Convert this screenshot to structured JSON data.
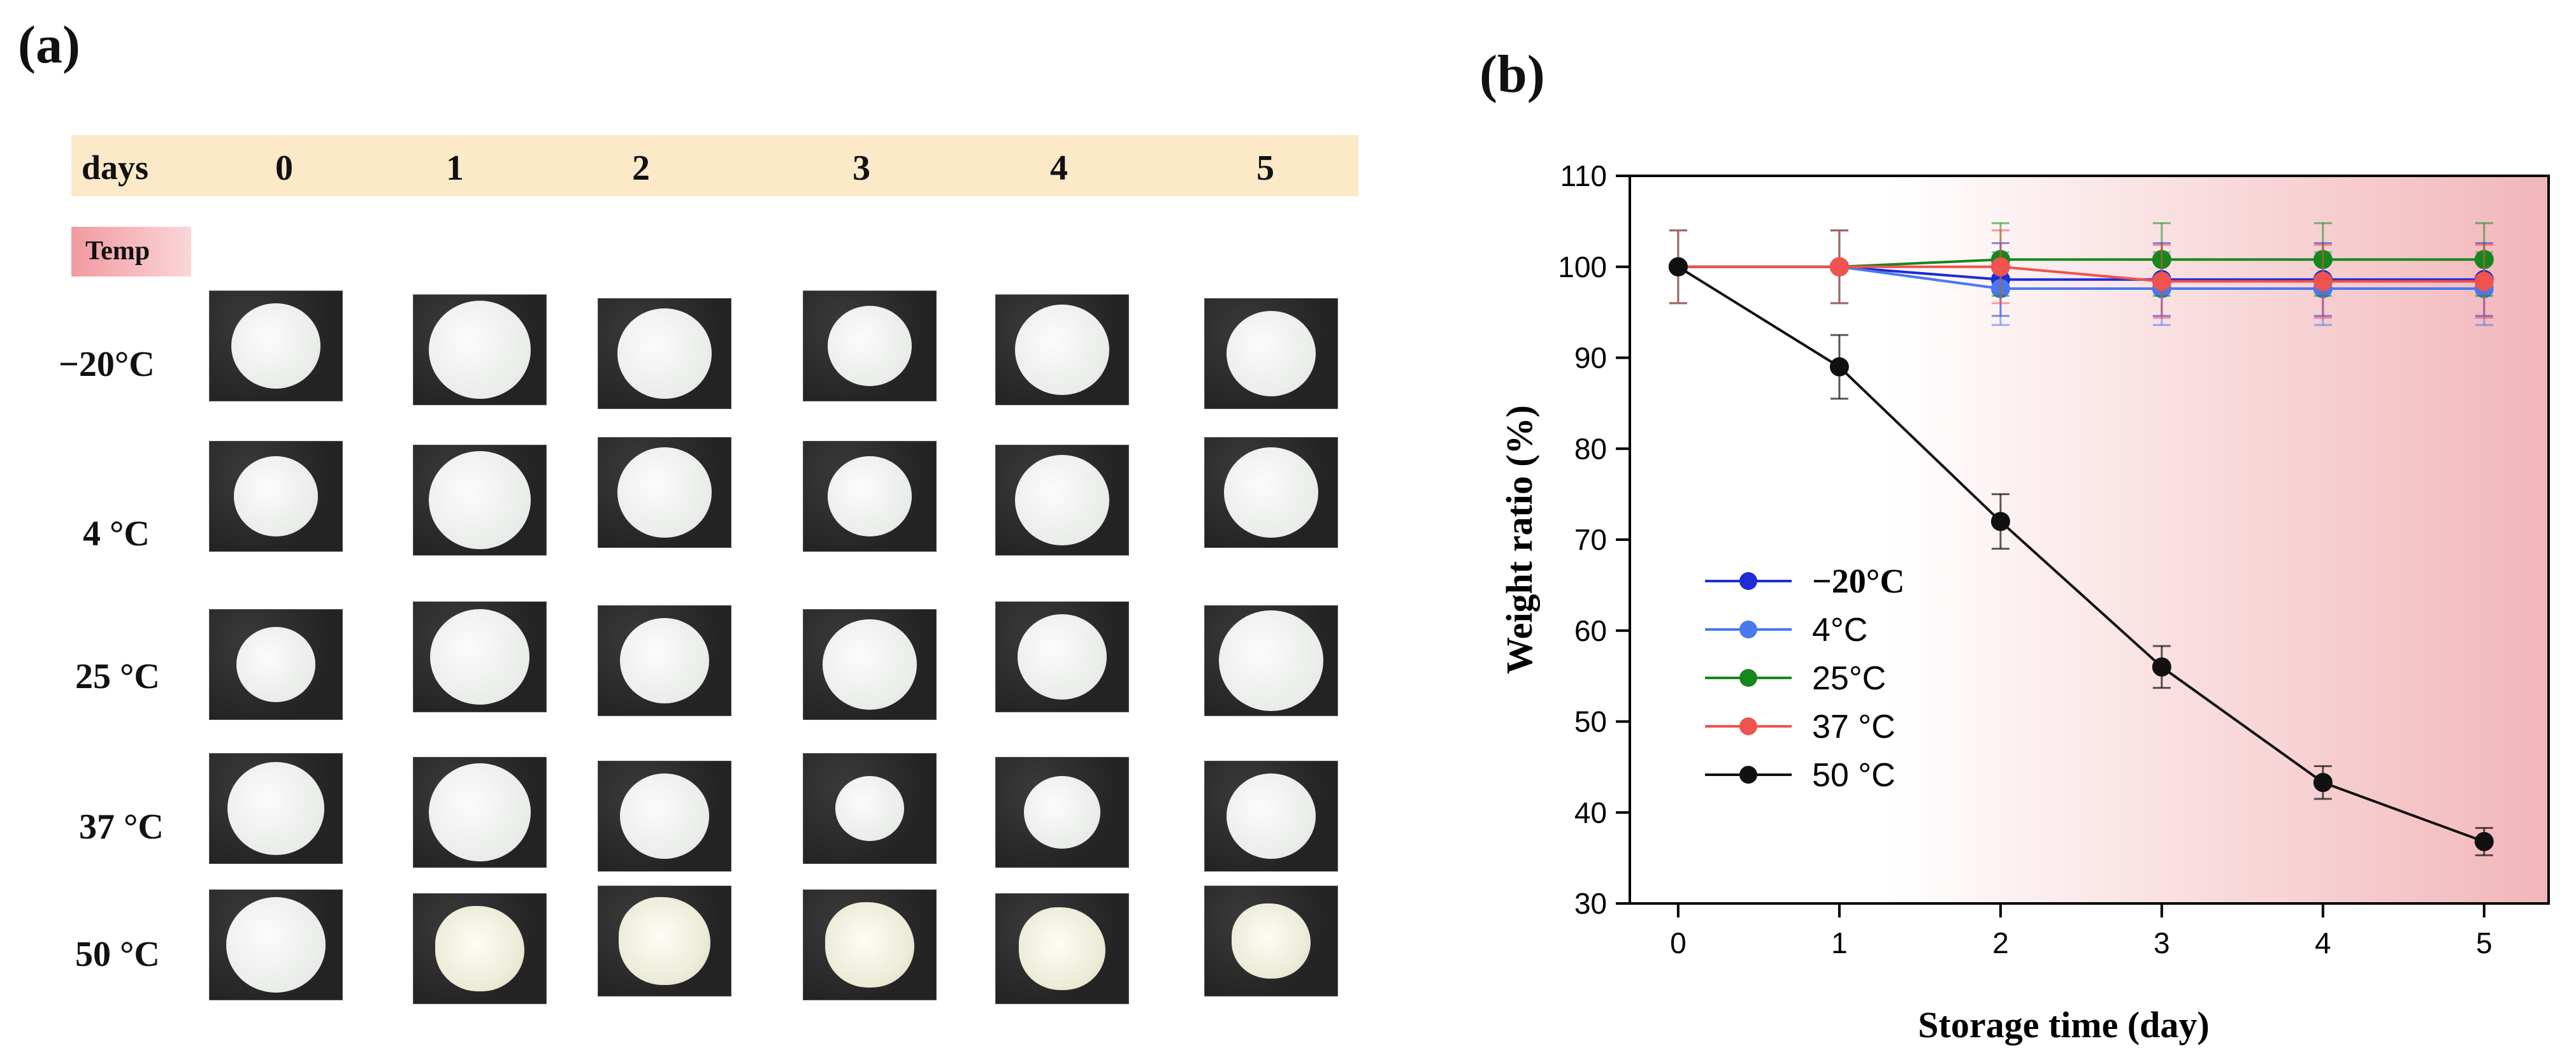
{
  "panel_a": {
    "label": "(a)",
    "days_label": "days",
    "days": [
      "0",
      "1",
      "2",
      "3",
      "4",
      "5"
    ],
    "temp_label": "Temp",
    "rows": [
      "−20°C",
      "4 °C",
      "25 °C",
      "37 °C",
      "50 °C"
    ]
  },
  "panel_b": {
    "label": "(b)"
  },
  "chart_data": {
    "type": "line",
    "title": "",
    "xlabel": "Storage time (day)",
    "ylabel": "Weight ratio (%)",
    "x": [
      0,
      1,
      2,
      3,
      4,
      5
    ],
    "xlim": [
      -0.3,
      5.4
    ],
    "ylim": [
      30,
      110
    ],
    "xticks": [
      "0",
      "1",
      "2",
      "3",
      "4",
      "5"
    ],
    "yticks": [
      "30",
      "40",
      "50",
      "60",
      "70",
      "80",
      "90",
      "100",
      "110"
    ],
    "legend_position": "center-left",
    "background": "pink gradient shading from day 1.3 to end",
    "series": [
      {
        "name": "−20°C",
        "color": "#1f2bd6",
        "values": [
          100,
          100,
          98.6,
          98.6,
          98.6,
          98.6
        ],
        "errors": [
          4,
          4,
          4,
          4,
          4,
          4
        ]
      },
      {
        "name": "4°C",
        "color": "#4a78ef",
        "values": [
          100,
          100,
          97.6,
          97.6,
          97.6,
          97.6
        ],
        "errors": [
          4,
          4,
          4,
          4,
          4,
          4
        ]
      },
      {
        "name": "25°C",
        "color": "#17861c",
        "values": [
          100,
          100,
          100.8,
          100.8,
          100.8,
          100.8
        ],
        "errors": [
          4,
          4,
          4,
          4,
          4,
          4
        ]
      },
      {
        "name": "37 °C",
        "color": "#f0524f",
        "values": [
          100,
          100,
          100,
          98.4,
          98.4,
          98.4
        ],
        "errors": [
          4,
          4,
          4,
          4,
          4,
          4
        ]
      },
      {
        "name": "50 °C",
        "color": "#111111",
        "values": [
          100,
          89,
          72,
          56,
          43.3,
          36.8
        ],
        "errors": [
          0,
          3.5,
          3,
          2.3,
          1.8,
          1.5
        ]
      }
    ]
  }
}
